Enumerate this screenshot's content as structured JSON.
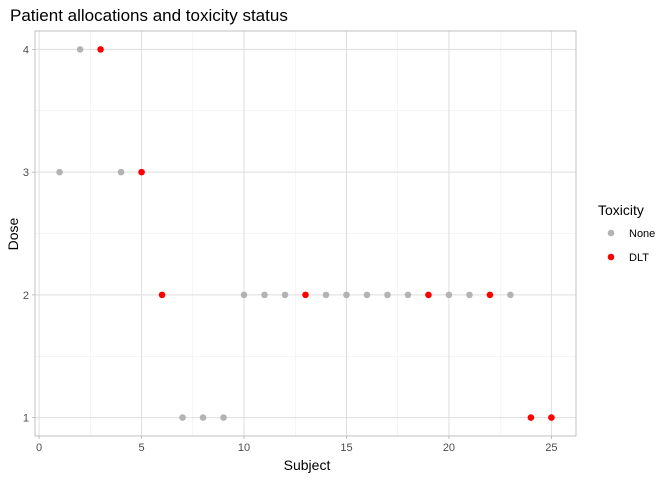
{
  "chart_data": {
    "type": "scatter",
    "title": "Patient allocations and toxicity status",
    "xlabel": "Subject",
    "ylabel": "Dose",
    "xlim": [
      -0.2,
      26.2
    ],
    "ylim": [
      0.85,
      4.15
    ],
    "x_ticks": [
      0,
      5,
      10,
      15,
      20,
      25
    ],
    "y_ticks": [
      1,
      2,
      3,
      4
    ],
    "grid": true,
    "legend": {
      "title": "Toxicity",
      "position": "right",
      "entries": [
        {
          "label": "None",
          "color": "#b3b3b3"
        },
        {
          "label": "DLT",
          "color": "#ff0000"
        }
      ]
    },
    "points": [
      {
        "x": 1,
        "y": 3,
        "tox": "None"
      },
      {
        "x": 2,
        "y": 4,
        "tox": "None"
      },
      {
        "x": 3,
        "y": 4,
        "tox": "DLT"
      },
      {
        "x": 4,
        "y": 3,
        "tox": "None"
      },
      {
        "x": 5,
        "y": 3,
        "tox": "DLT"
      },
      {
        "x": 6,
        "y": 2,
        "tox": "DLT"
      },
      {
        "x": 7,
        "y": 1,
        "tox": "None"
      },
      {
        "x": 8,
        "y": 1,
        "tox": "None"
      },
      {
        "x": 9,
        "y": 1,
        "tox": "None"
      },
      {
        "x": 10,
        "y": 2,
        "tox": "None"
      },
      {
        "x": 11,
        "y": 2,
        "tox": "None"
      },
      {
        "x": 12,
        "y": 2,
        "tox": "None"
      },
      {
        "x": 13,
        "y": 2,
        "tox": "DLT"
      },
      {
        "x": 14,
        "y": 2,
        "tox": "None"
      },
      {
        "x": 15,
        "y": 2,
        "tox": "None"
      },
      {
        "x": 16,
        "y": 2,
        "tox": "None"
      },
      {
        "x": 17,
        "y": 2,
        "tox": "None"
      },
      {
        "x": 18,
        "y": 2,
        "tox": "None"
      },
      {
        "x": 19,
        "y": 2,
        "tox": "DLT"
      },
      {
        "x": 20,
        "y": 2,
        "tox": "None"
      },
      {
        "x": 21,
        "y": 2,
        "tox": "None"
      },
      {
        "x": 22,
        "y": 2,
        "tox": "DLT"
      },
      {
        "x": 23,
        "y": 2,
        "tox": "None"
      },
      {
        "x": 24,
        "y": 1,
        "tox": "DLT"
      },
      {
        "x": 25,
        "y": 1,
        "tox": "DLT"
      }
    ]
  }
}
